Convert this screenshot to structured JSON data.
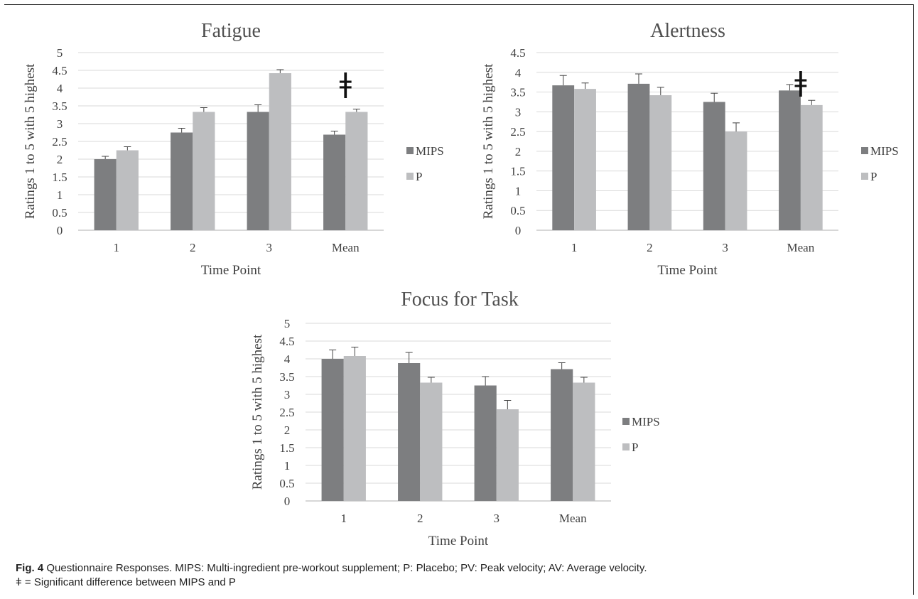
{
  "colors": {
    "mips": "#7d7e80",
    "p": "#bdbec0",
    "grid": "#d9d9d9",
    "axis": "#bfbfbf",
    "error": "#444444"
  },
  "chart_data": [
    {
      "type": "bar",
      "title": "Fatigue",
      "xlabel": "Time Point",
      "ylabel": "Ratings 1 to 5 with 5 highest",
      "categories": [
        "1",
        "2",
        "3",
        "Mean"
      ],
      "ylim": [
        0,
        5
      ],
      "yticks": [
        "0",
        "0.5",
        "1",
        "1.5",
        "2",
        "2.5",
        "3",
        "3.5",
        "4",
        "4.5",
        "5"
      ],
      "series": [
        {
          "name": "MIPS",
          "values": [
            2.0,
            2.75,
            3.33,
            2.69
          ],
          "errors": [
            0.08,
            0.12,
            0.2,
            0.1
          ]
        },
        {
          "name": "P",
          "values": [
            2.25,
            3.33,
            4.42,
            3.33
          ],
          "errors": [
            0.1,
            0.12,
            0.1,
            0.08
          ]
        }
      ],
      "legend_position": "right",
      "significance": {
        "category": "Mean",
        "symbol": "ǂ"
      }
    },
    {
      "type": "bar",
      "title": "Alertness",
      "xlabel": "Time Point",
      "ylabel": "Ratings 1 to 5 with 5 highest",
      "categories": [
        "1",
        "2",
        "3",
        "Mean"
      ],
      "ylim": [
        0,
        4.5
      ],
      "yticks": [
        "0",
        "0.5",
        "1",
        "1.5",
        "2",
        "2.5",
        "3",
        "3.5",
        "4",
        "4.5"
      ],
      "series": [
        {
          "name": "MIPS",
          "values": [
            3.67,
            3.71,
            3.25,
            3.54
          ],
          "errors": [
            0.25,
            0.25,
            0.22,
            0.15
          ]
        },
        {
          "name": "P",
          "values": [
            3.58,
            3.42,
            2.5,
            3.17
          ],
          "errors": [
            0.15,
            0.2,
            0.22,
            0.12
          ]
        }
      ],
      "legend_position": "right",
      "significance": {
        "category": "Mean",
        "symbol": "ǂ"
      }
    },
    {
      "type": "bar",
      "title": "Focus for Task",
      "xlabel": "Time Point",
      "ylabel": "Ratings 1 to 5 with 5 highest",
      "categories": [
        "1",
        "2",
        "3",
        "Mean"
      ],
      "ylim": [
        0,
        5
      ],
      "yticks": [
        "0",
        "0.5",
        "1",
        "1.5",
        "2",
        "2.5",
        "3",
        "3.5",
        "4",
        "4.5",
        "5"
      ],
      "series": [
        {
          "name": "MIPS",
          "values": [
            4.0,
            3.88,
            3.25,
            3.71
          ],
          "errors": [
            0.25,
            0.3,
            0.25,
            0.18
          ]
        },
        {
          "name": "P",
          "values": [
            4.08,
            3.33,
            2.58,
            3.33
          ],
          "errors": [
            0.25,
            0.15,
            0.25,
            0.15
          ]
        }
      ],
      "legend_position": "right"
    }
  ],
  "caption": {
    "label": "Fig. 4",
    "text": " Questionnaire Responses. MIPS: Multi-ingredient pre-workout supplement; P: Placebo; PV: Peak velocity; AV: Average velocity.",
    "footnote": "ǂ = Significant difference between MIPS and P"
  }
}
